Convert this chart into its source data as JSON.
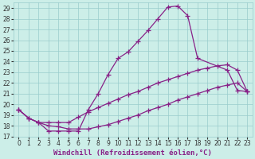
{
  "xlabel": "Windchill (Refroidissement éolien,°C)",
  "background_color": "#cceee8",
  "line_color": "#882288",
  "grid_color": "#99cccc",
  "xlim": [
    -0.5,
    23.5
  ],
  "ylim": [
    17,
    29.5
  ],
  "xticks": [
    0,
    1,
    2,
    3,
    4,
    5,
    6,
    7,
    8,
    9,
    10,
    11,
    12,
    13,
    14,
    15,
    16,
    17,
    18,
    19,
    20,
    21,
    22,
    23
  ],
  "yticks": [
    17,
    18,
    19,
    20,
    21,
    22,
    23,
    24,
    25,
    26,
    27,
    28,
    29
  ],
  "curve1_x": [
    0,
    1,
    2,
    3,
    4,
    5,
    6,
    7,
    8,
    9,
    10,
    11,
    12,
    13,
    14,
    15,
    16,
    17,
    18,
    21,
    22,
    23
  ],
  "curve1_y": [
    19.5,
    18.7,
    18.3,
    17.5,
    17.5,
    17.5,
    17.5,
    19.5,
    21.0,
    22.8,
    24.3,
    24.9,
    25.9,
    26.9,
    28.0,
    29.1,
    29.2,
    28.3,
    24.3,
    23.2,
    21.3,
    21.2
  ],
  "curve2_x": [
    0,
    1,
    2,
    3,
    4,
    5,
    6,
    7,
    8,
    9,
    10,
    11,
    12,
    13,
    14,
    15,
    16,
    17,
    18,
    19,
    20,
    21,
    22,
    23
  ],
  "curve2_y": [
    19.5,
    18.7,
    18.3,
    18.3,
    18.3,
    18.3,
    18.8,
    19.3,
    19.7,
    20.1,
    20.5,
    20.9,
    21.2,
    21.6,
    22.0,
    22.3,
    22.6,
    22.9,
    23.2,
    23.4,
    23.6,
    23.7,
    23.2,
    21.2
  ],
  "curve3_x": [
    0,
    1,
    2,
    3,
    4,
    5,
    6,
    7,
    8,
    9,
    10,
    11,
    12,
    13,
    14,
    15,
    16,
    17,
    18,
    19,
    20,
    21,
    22,
    23
  ],
  "curve3_y": [
    19.5,
    18.7,
    18.3,
    18.0,
    17.9,
    17.7,
    17.7,
    17.7,
    17.9,
    18.1,
    18.4,
    18.7,
    19.0,
    19.4,
    19.7,
    20.0,
    20.4,
    20.7,
    21.0,
    21.3,
    21.6,
    21.8,
    22.0,
    21.2
  ],
  "marker": "+",
  "markersize": 4,
  "markeredgewidth": 0.9,
  "linewidth": 0.9,
  "tick_fontsize": 5.5,
  "label_fontsize": 6.5
}
